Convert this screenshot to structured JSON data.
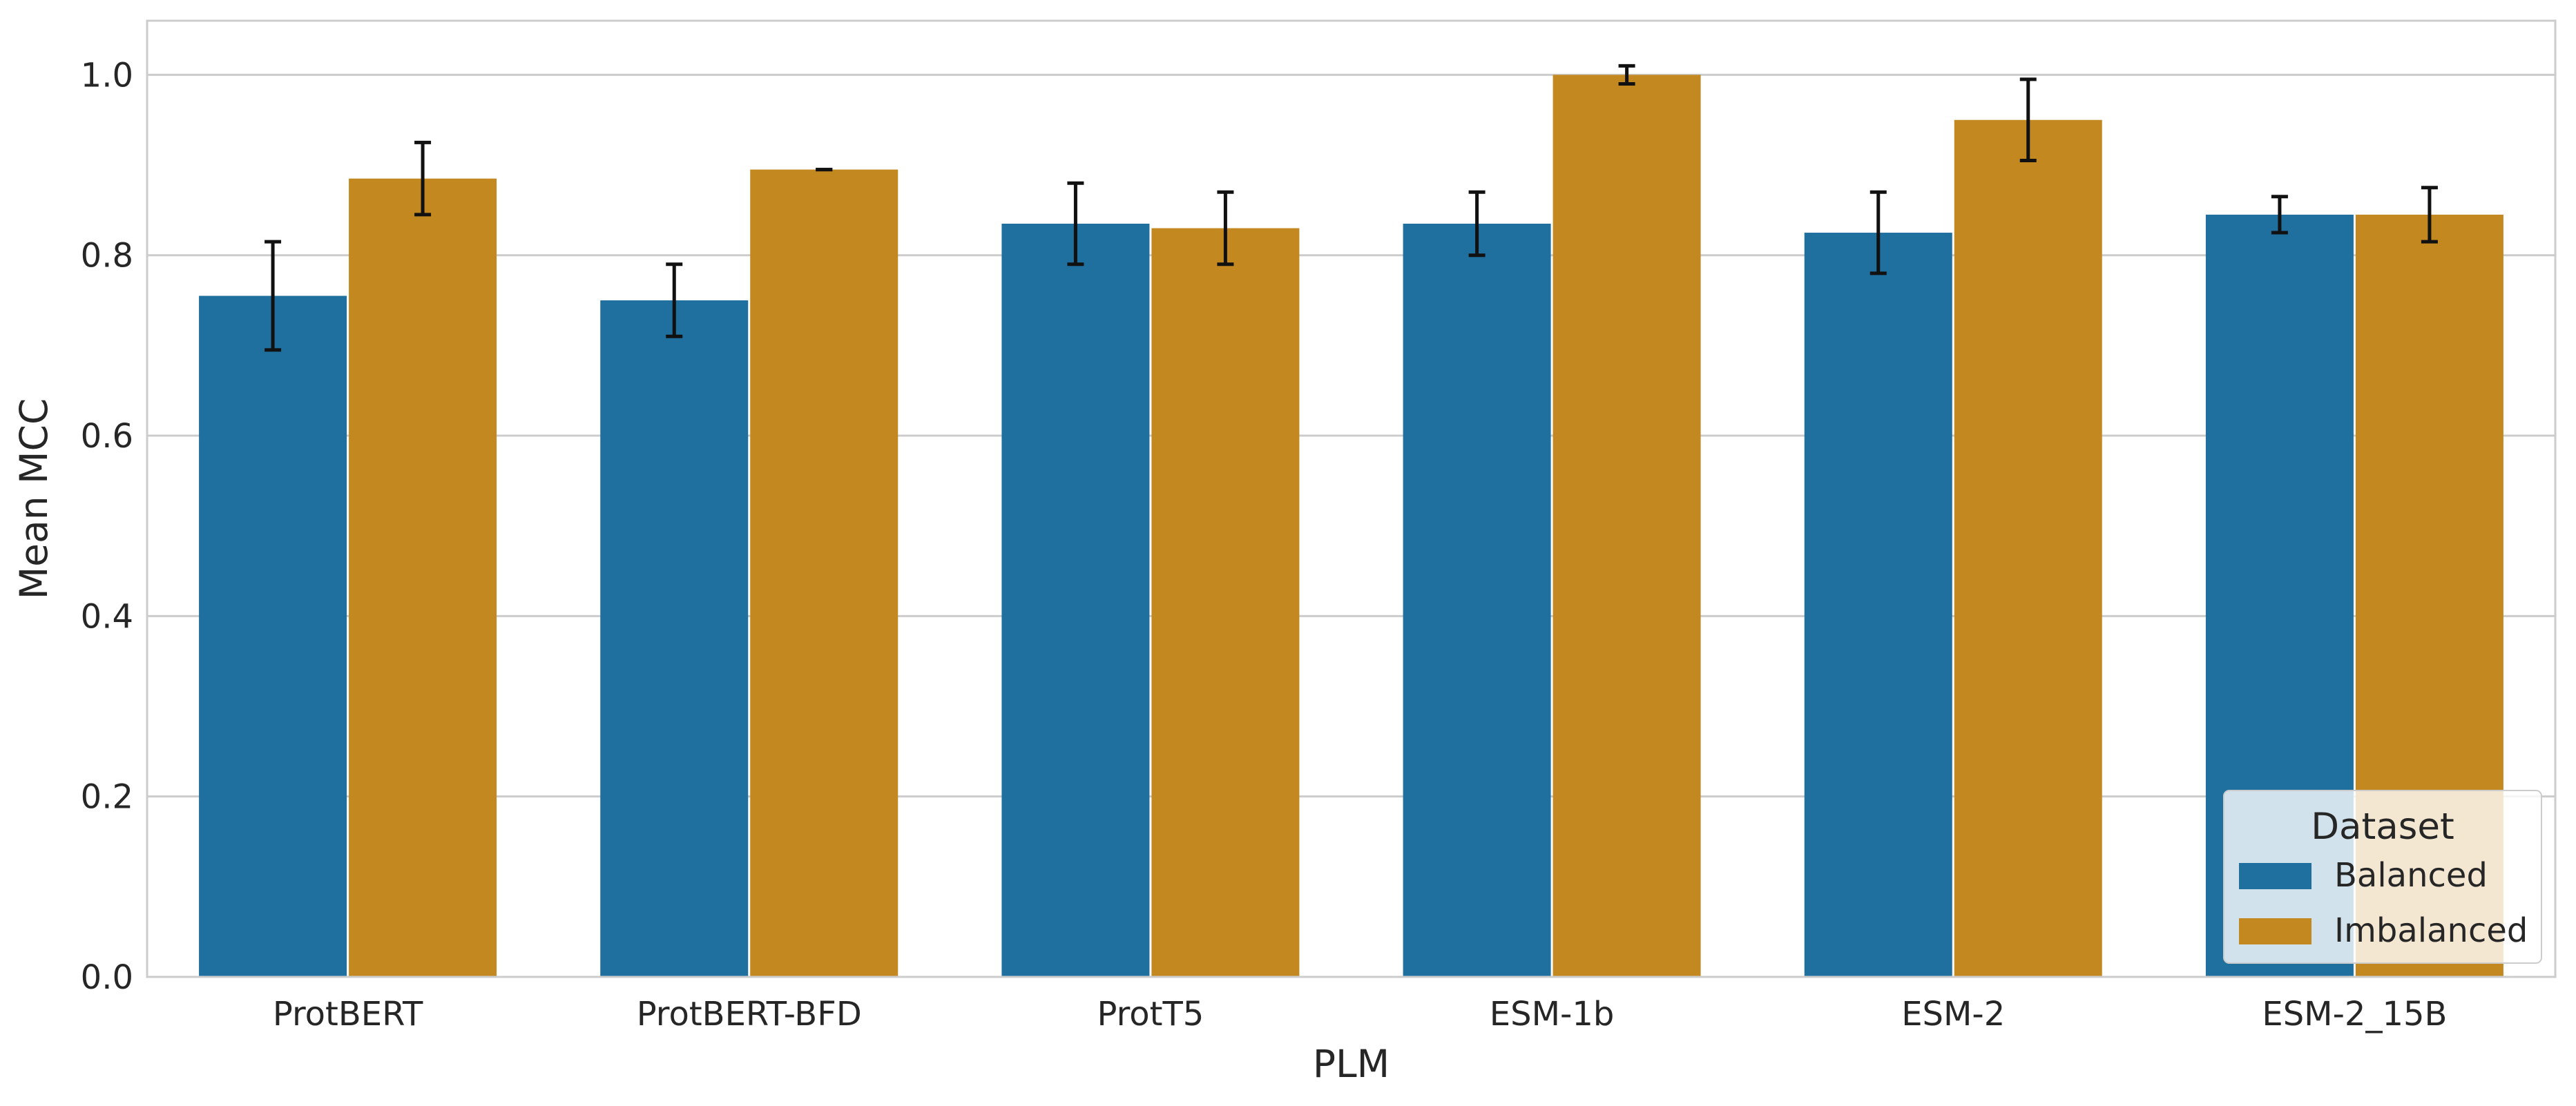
{
  "chart_data": {
    "type": "bar",
    "categories": [
      "ProtBERT",
      "ProtBERT-BFD",
      "ProtT5",
      "ESM-1b",
      "ESM-2",
      "ESM-2_15B"
    ],
    "series": [
      {
        "name": "Balanced",
        "color": "#1f6f9f",
        "values": [
          0.755,
          0.75,
          0.835,
          0.835,
          0.825,
          0.845
        ],
        "error": [
          0.06,
          0.04,
          0.045,
          0.035,
          0.045,
          0.02
        ]
      },
      {
        "name": "Imbalanced",
        "color": "#c38820",
        "values": [
          0.885,
          0.895,
          0.83,
          1.0,
          0.95,
          0.845
        ],
        "error": [
          0.04,
          0.0,
          0.04,
          0.01,
          0.045,
          0.03
        ]
      }
    ],
    "xlabel": "PLM",
    "ylabel": "Mean MCC",
    "ylim": [
      0.0,
      1.06
    ],
    "yticks": [
      "0.0",
      "0.2",
      "0.4",
      "0.6",
      "0.8",
      "1.0"
    ],
    "grid": "horizontal",
    "legend": {
      "title": "Dataset",
      "position": "lower-right"
    }
  }
}
